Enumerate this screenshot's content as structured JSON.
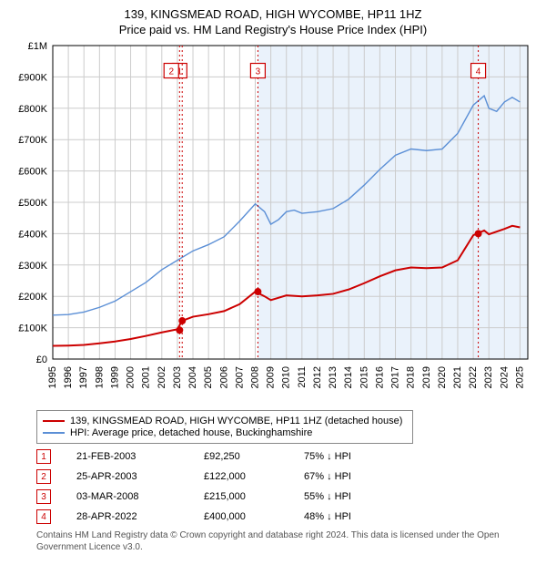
{
  "title": {
    "line1": "139, KINGSMEAD ROAD, HIGH WYCOMBE, HP11 1HZ",
    "line2": "Price paid vs. HM Land Registry's House Price Index (HPI)"
  },
  "chart": {
    "type": "line",
    "background_color": "#ffffff",
    "shaded_region": {
      "x_from": 2008.17,
      "x_to": 2025.5,
      "fill": "#eaf2fb"
    },
    "xlim": [
      1995,
      2025.5
    ],
    "ylim": [
      0,
      1000000
    ],
    "ytick_step": 100000,
    "yticks": [
      "£0",
      "£100K",
      "£200K",
      "£300K",
      "£400K",
      "£500K",
      "£600K",
      "£700K",
      "£800K",
      "£900K",
      "£1M"
    ],
    "xticks": [
      1995,
      1996,
      1997,
      1998,
      1999,
      2000,
      2001,
      2002,
      2003,
      2004,
      2005,
      2006,
      2007,
      2008,
      2009,
      2010,
      2011,
      2012,
      2013,
      2014,
      2015,
      2016,
      2017,
      2018,
      2019,
      2020,
      2021,
      2022,
      2023,
      2024,
      2025
    ],
    "grid_color": "#cccccc",
    "axis_color": "#000000",
    "tick_fontsize": 11,
    "series": [
      {
        "name": "hpi",
        "label": "HPI: Average price, detached house, Buckinghamshire",
        "color": "#5b8fd6",
        "width": 1.4,
        "points": [
          [
            1995,
            140000
          ],
          [
            1996,
            142000
          ],
          [
            1997,
            150000
          ],
          [
            1998,
            165000
          ],
          [
            1999,
            185000
          ],
          [
            2000,
            215000
          ],
          [
            2001,
            245000
          ],
          [
            2002,
            285000
          ],
          [
            2003,
            315000
          ],
          [
            2004,
            345000
          ],
          [
            2005,
            365000
          ],
          [
            2006,
            390000
          ],
          [
            2007,
            440000
          ],
          [
            2008,
            495000
          ],
          [
            2008.6,
            470000
          ],
          [
            2009,
            430000
          ],
          [
            2009.5,
            445000
          ],
          [
            2010,
            470000
          ],
          [
            2010.5,
            475000
          ],
          [
            2011,
            465000
          ],
          [
            2012,
            470000
          ],
          [
            2013,
            480000
          ],
          [
            2014,
            510000
          ],
          [
            2015,
            555000
          ],
          [
            2016,
            605000
          ],
          [
            2017,
            650000
          ],
          [
            2018,
            670000
          ],
          [
            2019,
            665000
          ],
          [
            2020,
            670000
          ],
          [
            2021,
            720000
          ],
          [
            2022,
            810000
          ],
          [
            2022.7,
            840000
          ],
          [
            2023,
            800000
          ],
          [
            2023.5,
            790000
          ],
          [
            2024,
            820000
          ],
          [
            2024.5,
            835000
          ],
          [
            2025,
            820000
          ]
        ]
      },
      {
        "name": "property",
        "label": "139, KINGSMEAD ROAD, HIGH WYCOMBE, HP11 1HZ (detached house)",
        "color": "#cc0000",
        "width": 2,
        "points": [
          [
            1995,
            42000
          ],
          [
            1996,
            43000
          ],
          [
            1997,
            45000
          ],
          [
            1998,
            50000
          ],
          [
            1999,
            56000
          ],
          [
            2000,
            64000
          ],
          [
            2001,
            74000
          ],
          [
            2002,
            85000
          ],
          [
            2003,
            95000
          ],
          [
            2003.3,
            122000
          ],
          [
            2004,
            135000
          ],
          [
            2005,
            143000
          ],
          [
            2006,
            153000
          ],
          [
            2007,
            175000
          ],
          [
            2008,
            215000
          ],
          [
            2008.6,
            200000
          ],
          [
            2009,
            188000
          ],
          [
            2010,
            203000
          ],
          [
            2011,
            200000
          ],
          [
            2012,
            203000
          ],
          [
            2013,
            208000
          ],
          [
            2014,
            222000
          ],
          [
            2015,
            242000
          ],
          [
            2016,
            264000
          ],
          [
            2017,
            283000
          ],
          [
            2018,
            292000
          ],
          [
            2019,
            290000
          ],
          [
            2020,
            292000
          ],
          [
            2021,
            315000
          ],
          [
            2022,
            395000
          ],
          [
            2022.7,
            410000
          ],
          [
            2023,
            398000
          ],
          [
            2024,
            415000
          ],
          [
            2024.5,
            425000
          ],
          [
            2025,
            420000
          ]
        ]
      }
    ],
    "markers": [
      {
        "n": "1",
        "x": 2003.14,
        "y": 92250,
        "label_y": 920000,
        "color": "#cc0000"
      },
      {
        "n": "2",
        "x": 2003.31,
        "y": 122000,
        "label_y": 920000,
        "color": "#cc0000",
        "label_x_offset": -0.7
      },
      {
        "n": "3",
        "x": 2008.17,
        "y": 215000,
        "label_y": 920000,
        "color": "#cc0000"
      },
      {
        "n": "4",
        "x": 2022.32,
        "y": 400000,
        "label_y": 920000,
        "color": "#cc0000"
      }
    ]
  },
  "legend": {
    "items": [
      {
        "color": "#cc0000",
        "label": "139, KINGSMEAD ROAD, HIGH WYCOMBE, HP11 1HZ (detached house)"
      },
      {
        "color": "#5b8fd6",
        "label": "HPI: Average price, detached house, Buckinghamshire"
      }
    ]
  },
  "transactions": [
    {
      "n": "1",
      "date": "21-FEB-2003",
      "price": "£92,250",
      "rel": "75% ↓ HPI",
      "color": "#cc0000"
    },
    {
      "n": "2",
      "date": "25-APR-2003",
      "price": "£122,000",
      "rel": "67% ↓ HPI",
      "color": "#cc0000"
    },
    {
      "n": "3",
      "date": "03-MAR-2008",
      "price": "£215,000",
      "rel": "55% ↓ HPI",
      "color": "#cc0000"
    },
    {
      "n": "4",
      "date": "28-APR-2022",
      "price": "£400,000",
      "rel": "48% ↓ HPI",
      "color": "#cc0000"
    }
  ],
  "footnote": "Contains HM Land Registry data © Crown copyright and database right 2024. This data is licensed under the Open Government Licence v3.0."
}
